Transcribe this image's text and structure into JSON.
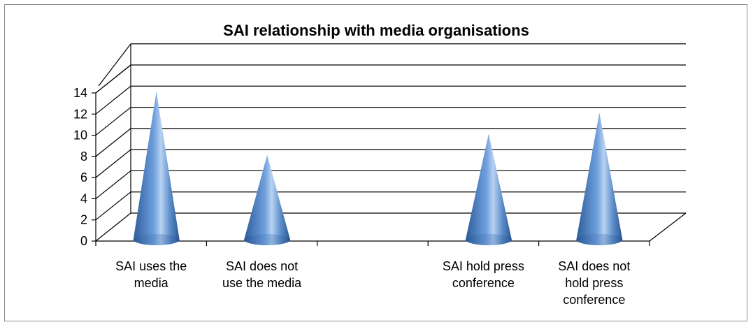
{
  "chart_data": {
    "type": "bar",
    "style": "3d-cone",
    "title": "SAI relationship with media organisations",
    "categories": [
      [
        "SAI uses the",
        "media"
      ],
      [
        "SAI does not",
        "use the media"
      ],
      [],
      [
        "SAI hold press",
        "conference"
      ],
      [
        "SAI does not",
        "hold press",
        "conference"
      ]
    ],
    "values": [
      14,
      8,
      0,
      10,
      12
    ],
    "ylim": [
      0,
      14
    ],
    "yticks": [
      0,
      2,
      4,
      6,
      8,
      10,
      12,
      14
    ],
    "grid": true,
    "legend": "none",
    "colors": {
      "cone_dark": "#2d5c9c",
      "cone_mid": "#6f9fdc",
      "cone_light": "#b8d2f2",
      "gridline": "#000000"
    }
  }
}
